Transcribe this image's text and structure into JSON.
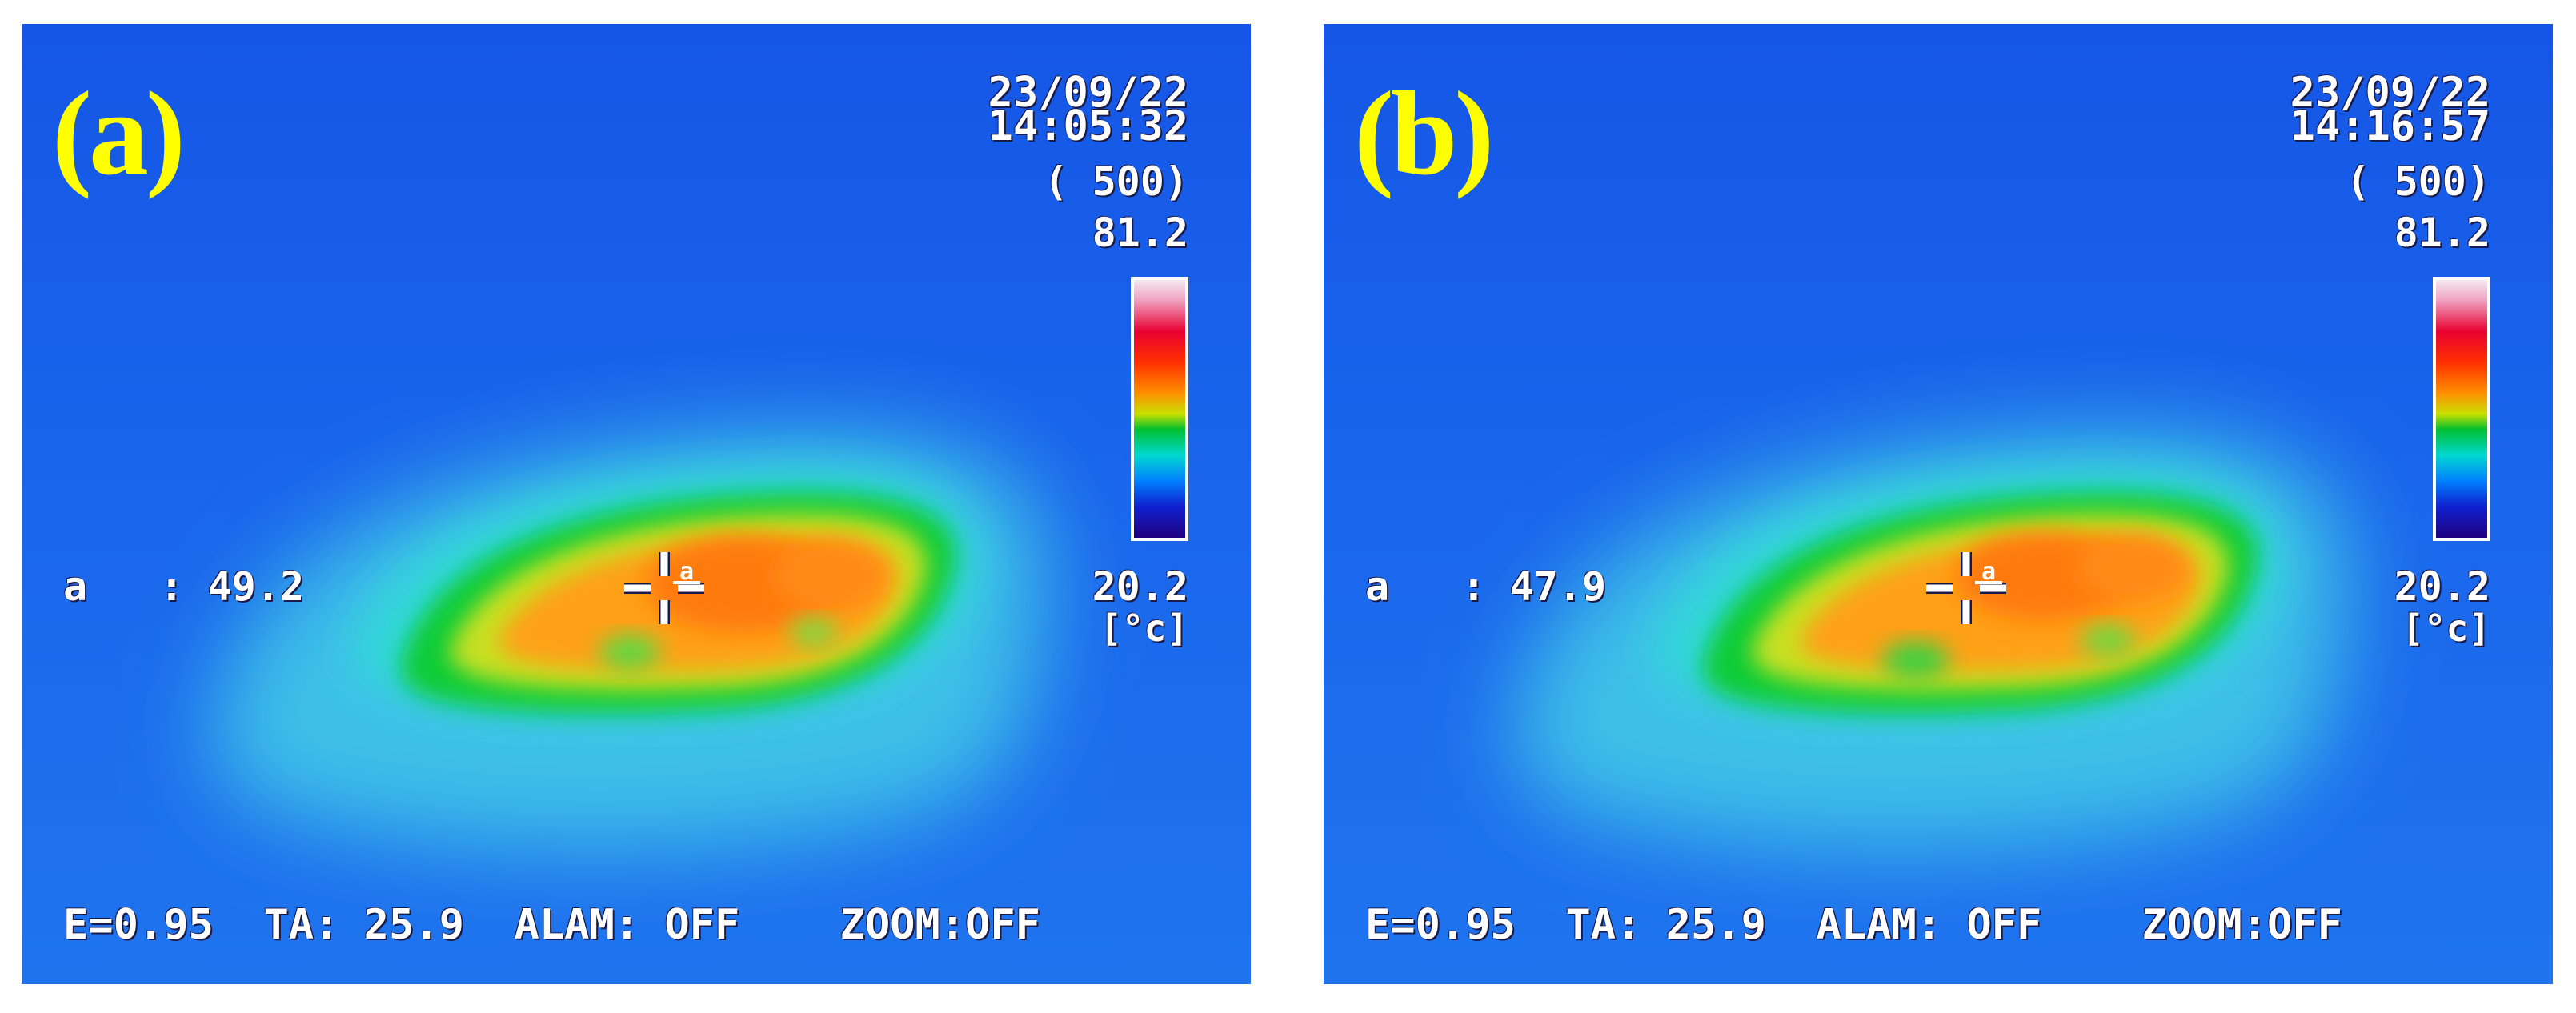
{
  "panels": [
    {
      "label": "(a)",
      "date": "23/09/22",
      "time": "14:05:32",
      "range": "( 500)",
      "scale_max": "81.2",
      "scale_min": "20.2",
      "unit": "[°c]",
      "spot_label": "a",
      "spot_sep": ":",
      "spot_value": "49.2",
      "cursor_label": "a",
      "status": "E=0.95  TA: 25.9  ALAM: OFF    ZOOM:OFF"
    },
    {
      "label": "(b)",
      "date": "23/09/22",
      "time": "14:16:57",
      "range": "( 500)",
      "scale_max": "81.2",
      "scale_min": "20.2",
      "unit": "[°c]",
      "spot_label": "a",
      "spot_sep": ":",
      "spot_value": "47.9",
      "cursor_label": "a",
      "status": "E=0.95  TA: 25.9  ALAM: OFF    ZOOM:OFF"
    }
  ],
  "colors": {
    "label_yellow": "#ffff00",
    "background_blue": "#1a66e8",
    "hot_orange": "#ff9a10",
    "ring_green": "#10d040",
    "halo_cyan": "#30d8e0"
  }
}
